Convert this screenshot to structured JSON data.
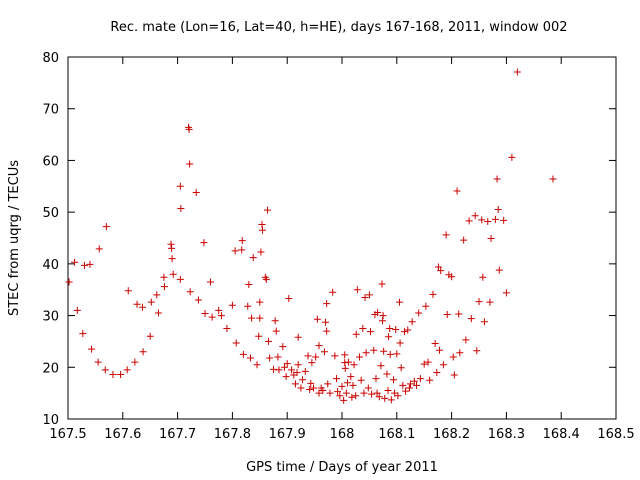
{
  "colors": {
    "series": "#cc0000",
    "axes": "#000000",
    "background": "#ffffff"
  },
  "chart_data": {
    "type": "scatter",
    "title": "Rec. mate (Lon=16, Lat=40, h=HE), days 167-168, 2011, window 002",
    "xlabel": "GPS time / Days of year 2011",
    "ylabel": "STEC from uqrg / TECUs",
    "xlim": [
      167.5,
      168.5
    ],
    "ylim": [
      10,
      80
    ],
    "xticks": [
      "167.5",
      "167.6",
      "167.7",
      "167.8",
      "167.9",
      "168",
      "168.1",
      "168.2",
      "168.3",
      "168.4",
      "168.5"
    ],
    "yticks": [
      "10",
      "20",
      "30",
      "40",
      "50",
      "60",
      "70",
      "80"
    ],
    "grid": false,
    "legend": "none",
    "marker": "+",
    "series": [
      {
        "points": [
          [
            167.502,
            36.5
          ],
          [
            167.512,
            40.3
          ],
          [
            167.517,
            31.0
          ],
          [
            167.527,
            26.5
          ],
          [
            167.53,
            39.7
          ],
          [
            167.54,
            39.9
          ],
          [
            167.543,
            23.5
          ],
          [
            167.555,
            21.0
          ],
          [
            167.557,
            42.9
          ],
          [
            167.57,
            47.2
          ],
          [
            167.568,
            19.5
          ],
          [
            167.582,
            18.6
          ],
          [
            167.596,
            18.6
          ],
          [
            167.608,
            19.5
          ],
          [
            167.61,
            34.8
          ],
          [
            167.622,
            21.0
          ],
          [
            167.626,
            32.2
          ],
          [
            167.636,
            31.6
          ],
          [
            167.637,
            23.0
          ],
          [
            167.65,
            26.0
          ],
          [
            167.652,
            32.6
          ],
          [
            167.662,
            34.0
          ],
          [
            167.665,
            30.5
          ],
          [
            167.675,
            37.4
          ],
          [
            167.676,
            35.6
          ],
          [
            167.688,
            43.8
          ],
          [
            167.689,
            43.0
          ],
          [
            167.69,
            41.0
          ],
          [
            167.692,
            38.0
          ],
          [
            167.705,
            55.0
          ],
          [
            167.706,
            50.7
          ],
          [
            167.705,
            37.0
          ],
          [
            167.72,
            66.4
          ],
          [
            167.721,
            66.0
          ],
          [
            167.722,
            59.3
          ],
          [
            167.723,
            34.6
          ],
          [
            167.734,
            53.8
          ],
          [
            167.738,
            33.0
          ],
          [
            167.748,
            44.1
          ],
          [
            167.75,
            30.4
          ],
          [
            167.76,
            36.5
          ],
          [
            167.763,
            29.7
          ],
          [
            167.775,
            31.0
          ],
          [
            167.78,
            30.0
          ],
          [
            167.79,
            27.5
          ],
          [
            167.8,
            32.0
          ],
          [
            167.805,
            42.5
          ],
          [
            167.807,
            24.7
          ],
          [
            167.817,
            42.7
          ],
          [
            167.818,
            44.5
          ],
          [
            167.82,
            22.5
          ],
          [
            167.828,
            31.8
          ],
          [
            167.83,
            36.0
          ],
          [
            167.833,
            21.8
          ],
          [
            167.835,
            29.5
          ],
          [
            167.838,
            41.2
          ],
          [
            167.845,
            20.5
          ],
          [
            167.848,
            26.0
          ],
          [
            167.85,
            29.5
          ],
          [
            167.85,
            32.6
          ],
          [
            167.852,
            42.3
          ],
          [
            167.854,
            47.6
          ],
          [
            167.855,
            46.5
          ],
          [
            167.86,
            37.4
          ],
          [
            167.862,
            37.0
          ],
          [
            167.864,
            50.4
          ],
          [
            167.866,
            25.0
          ],
          [
            167.868,
            21.8
          ],
          [
            167.875,
            19.6
          ],
          [
            167.878,
            29.0
          ],
          [
            167.88,
            27.0
          ],
          [
            167.883,
            22.0
          ],
          [
            167.885,
            19.5
          ],
          [
            167.892,
            24.0
          ],
          [
            167.895,
            20.0
          ],
          [
            167.898,
            18.2
          ],
          [
            167.9,
            20.7
          ],
          [
            167.903,
            33.3
          ],
          [
            167.908,
            19.5
          ],
          [
            167.912,
            18.5
          ],
          [
            167.915,
            16.8
          ],
          [
            167.918,
            19.0
          ],
          [
            167.92,
            25.8
          ],
          [
            167.92,
            20.5
          ],
          [
            167.925,
            16.0
          ],
          [
            167.928,
            17.6
          ],
          [
            167.933,
            19.2
          ],
          [
            167.938,
            22.2
          ],
          [
            167.941,
            15.7
          ],
          [
            167.943,
            16.9
          ],
          [
            167.945,
            20.9
          ],
          [
            167.948,
            16.0
          ],
          [
            167.952,
            22.0
          ],
          [
            167.955,
            29.3
          ],
          [
            167.958,
            24.2
          ],
          [
            167.958,
            15.0
          ],
          [
            167.962,
            16.0
          ],
          [
            167.965,
            15.5
          ],
          [
            167.968,
            23.0
          ],
          [
            167.97,
            28.7
          ],
          [
            167.972,
            32.3
          ],
          [
            167.972,
            27.0
          ],
          [
            167.974,
            16.8
          ],
          [
            167.978,
            15.0
          ],
          [
            167.983,
            34.5
          ],
          [
            167.987,
            22.2
          ],
          [
            167.99,
            17.8
          ],
          [
            167.992,
            15.3
          ],
          [
            167.996,
            14.5
          ],
          [
            168.0,
            16.3
          ],
          [
            168.003,
            13.6
          ],
          [
            168.005,
            22.4
          ],
          [
            168.005,
            20.9
          ],
          [
            168.006,
            19.8
          ],
          [
            168.008,
            15.0
          ],
          [
            168.01,
            17.0
          ],
          [
            168.012,
            21.0
          ],
          [
            168.016,
            18.2
          ],
          [
            168.018,
            14.2
          ],
          [
            168.02,
            16.5
          ],
          [
            168.022,
            20.5
          ],
          [
            168.025,
            14.5
          ],
          [
            168.026,
            26.4
          ],
          [
            168.028,
            35.0
          ],
          [
            168.032,
            22.0
          ],
          [
            168.035,
            17.5
          ],
          [
            168.038,
            27.5
          ],
          [
            168.04,
            15.0
          ],
          [
            168.042,
            33.5
          ],
          [
            168.044,
            22.8
          ],
          [
            168.048,
            16.0
          ],
          [
            168.05,
            34.0
          ],
          [
            168.052,
            26.9
          ],
          [
            168.054,
            14.8
          ],
          [
            168.058,
            23.3
          ],
          [
            168.06,
            30.2
          ],
          [
            168.062,
            17.8
          ],
          [
            168.064,
            15.0
          ],
          [
            168.065,
            30.6
          ],
          [
            168.068,
            14.3
          ],
          [
            168.071,
            20.3
          ],
          [
            168.073,
            36.1
          ],
          [
            168.074,
            29.0
          ],
          [
            168.075,
            30.0
          ],
          [
            168.076,
            23.1
          ],
          [
            168.078,
            14.0
          ],
          [
            168.082,
            18.7
          ],
          [
            168.084,
            15.5
          ],
          [
            168.085,
            25.9
          ],
          [
            168.087,
            27.5
          ],
          [
            168.088,
            22.5
          ],
          [
            168.09,
            13.7
          ],
          [
            168.094,
            17.6
          ],
          [
            168.096,
            15.0
          ],
          [
            168.098,
            27.3
          ],
          [
            168.1,
            22.6
          ],
          [
            168.102,
            14.5
          ],
          [
            168.105,
            32.6
          ],
          [
            168.106,
            24.7
          ],
          [
            168.108,
            19.9
          ],
          [
            168.111,
            16.5
          ],
          [
            168.114,
            26.9
          ],
          [
            168.116,
            15.4
          ],
          [
            168.12,
            27.2
          ],
          [
            168.123,
            16.0
          ],
          [
            168.125,
            16.8
          ],
          [
            168.128,
            28.8
          ],
          [
            168.132,
            17.3
          ],
          [
            168.136,
            16.5
          ],
          [
            168.14,
            30.5
          ],
          [
            168.143,
            17.8
          ],
          [
            168.15,
            20.6
          ],
          [
            168.153,
            31.8
          ],
          [
            168.157,
            21.0
          ],
          [
            168.16,
            17.5
          ],
          [
            168.166,
            34.1
          ],
          [
            168.17,
            24.6
          ],
          [
            168.173,
            19.0
          ],
          [
            168.176,
            39.4
          ],
          [
            168.178,
            23.3
          ],
          [
            168.18,
            38.7
          ],
          [
            168.185,
            20.5
          ],
          [
            168.19,
            45.6
          ],
          [
            168.192,
            30.2
          ],
          [
            168.195,
            37.9
          ],
          [
            168.2,
            37.5
          ],
          [
            168.203,
            22.0
          ],
          [
            168.205,
            18.5
          ],
          [
            168.21,
            54.1
          ],
          [
            168.213,
            30.3
          ],
          [
            168.215,
            22.8
          ],
          [
            168.222,
            44.6
          ],
          [
            168.226,
            25.3
          ],
          [
            168.232,
            48.3
          ],
          [
            168.236,
            29.4
          ],
          [
            168.243,
            49.3
          ],
          [
            168.246,
            23.2
          ],
          [
            168.25,
            32.7
          ],
          [
            168.255,
            48.5
          ],
          [
            168.257,
            37.4
          ],
          [
            168.26,
            28.8
          ],
          [
            168.266,
            48.2
          ],
          [
            168.27,
            32.6
          ],
          [
            168.272,
            44.9
          ],
          [
            168.28,
            48.6
          ],
          [
            168.283,
            56.4
          ],
          [
            168.285,
            50.5
          ],
          [
            168.287,
            38.8
          ],
          [
            168.295,
            48.4
          ],
          [
            168.3,
            34.4
          ],
          [
            168.31,
            60.6
          ],
          [
            168.32,
            77.1
          ],
          [
            168.385,
            56.4
          ]
        ]
      }
    ]
  }
}
